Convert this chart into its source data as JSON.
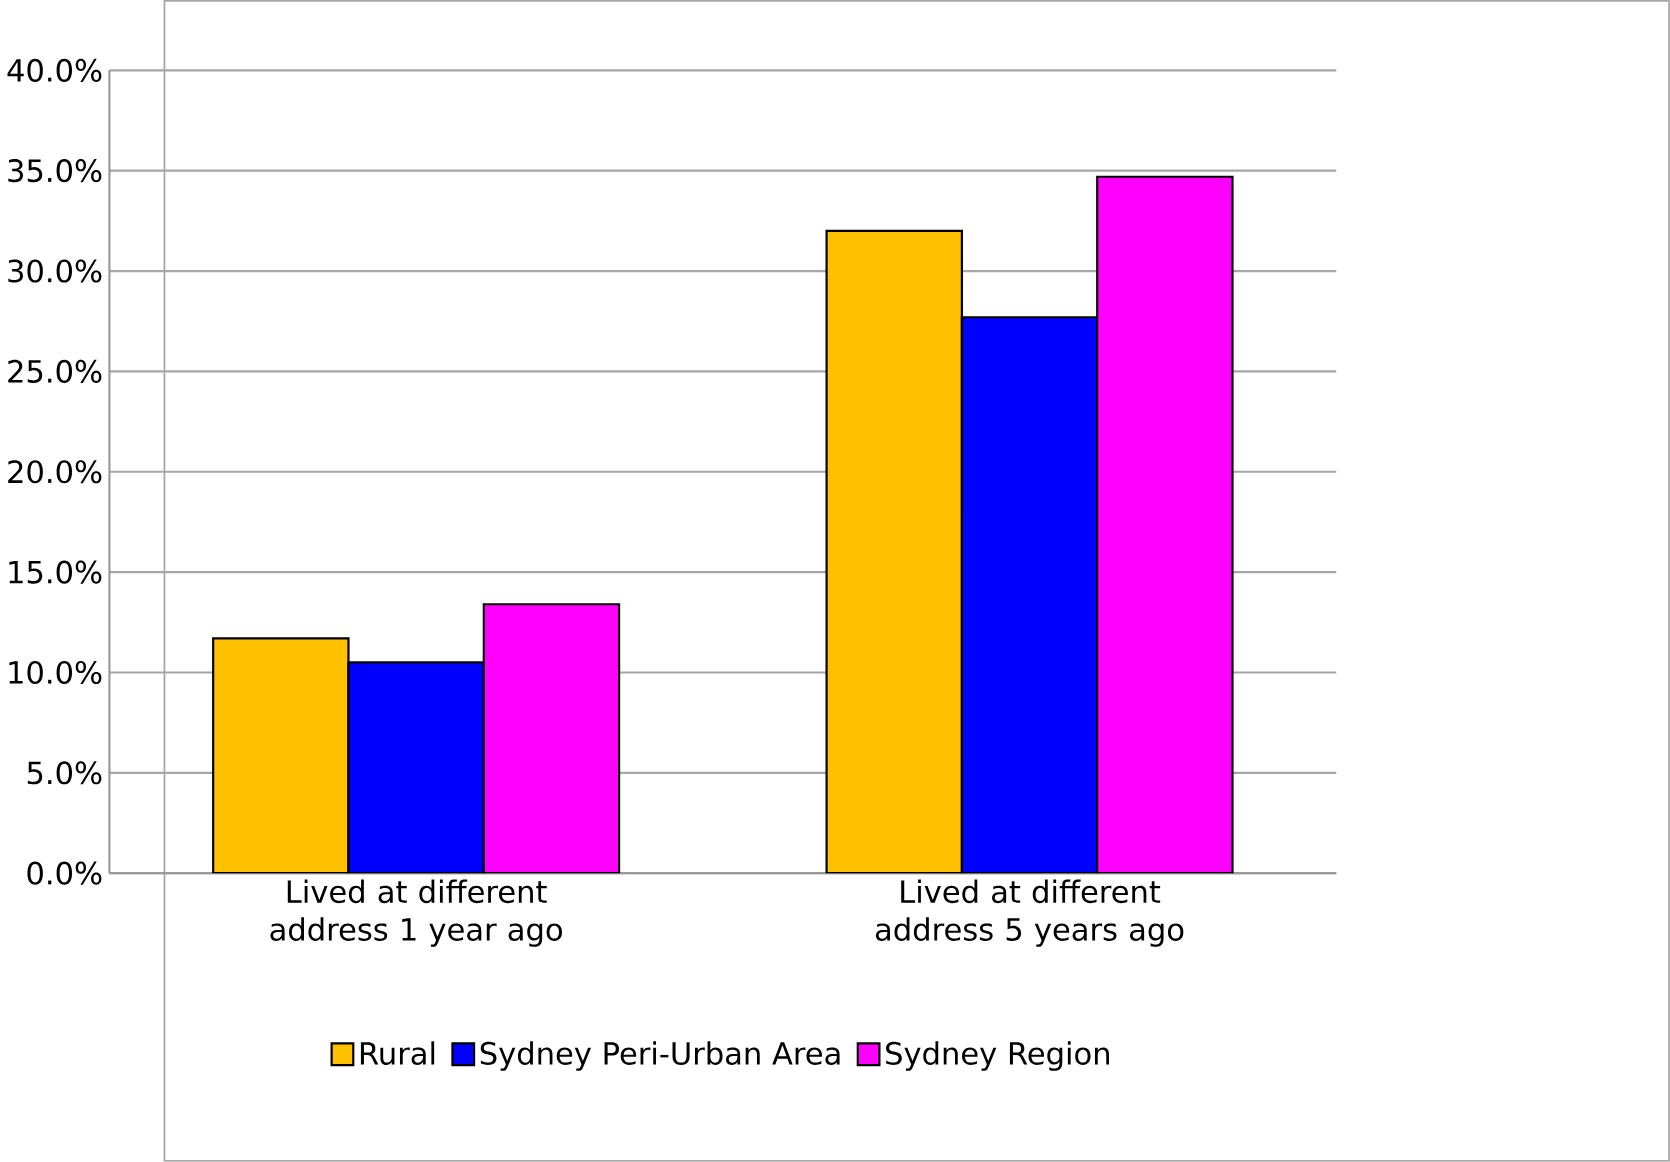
{
  "chart_data": {
    "type": "bar",
    "categories": [
      "Lived at different address 1 year ago",
      "Lived at different address 5 years ago"
    ],
    "series": [
      {
        "name": "Rural",
        "color": "#ffc000",
        "values": [
          11.7,
          32.0
        ]
      },
      {
        "name": "Sydney Peri-Urban Area",
        "color": "#0000ff",
        "values": [
          10.5,
          27.7
        ]
      },
      {
        "name": "Sydney Region",
        "color": "#ff00ff",
        "values": [
          13.4,
          34.7
        ]
      }
    ],
    "ylim": [
      0,
      40
    ],
    "yticks": [
      {
        "value": 0,
        "label": "0.0%"
      },
      {
        "value": 5,
        "label": "5.0%"
      },
      {
        "value": 10,
        "label": "10.0%"
      },
      {
        "value": 15,
        "label": "15.0%"
      },
      {
        "value": 20,
        "label": "20.0%"
      },
      {
        "value": 25,
        "label": "25.0%"
      },
      {
        "value": 30,
        "label": "30.0%"
      },
      {
        "value": 35,
        "label": "35.0%"
      },
      {
        "value": 40,
        "label": "40.0%"
      }
    ],
    "grid": "y",
    "legend": "bottom"
  }
}
